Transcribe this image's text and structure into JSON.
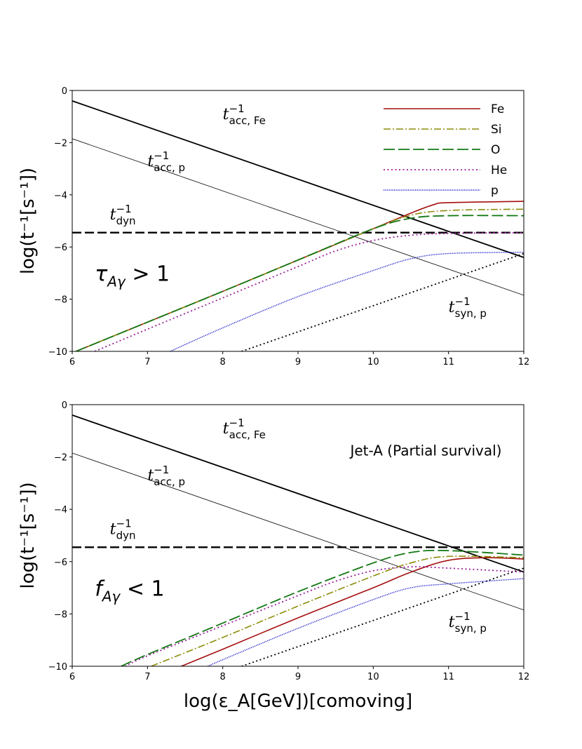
{
  "chart_data": [
    {
      "type": "line",
      "xlabel": "log(ε_A[GeV])[comoving]",
      "ylabel": "log(t⁻¹[s⁻¹])",
      "xlim": [
        6,
        12
      ],
      "ylim": [
        -10,
        0
      ],
      "xticks": [
        "6",
        "7",
        "8",
        "9",
        "10",
        "11",
        "12"
      ],
      "yticks": [
        "0",
        "−2",
        "−4",
        "−6",
        "−8",
        "−10"
      ],
      "grid": false,
      "legend_placement": "top-right",
      "regime_label": {
        "main": "τ",
        "sub": "Aγ",
        "rest": " > 1"
      },
      "annotations": [
        {
          "base": "t",
          "sup": "−1",
          "sub": "acc, Fe",
          "at": [
            8.0,
            -1.1
          ]
        },
        {
          "base": "t",
          "sup": "−1",
          "sub": "acc, p",
          "at": [
            7.0,
            -2.9
          ]
        },
        {
          "base": "t",
          "sup": "−1",
          "sub": "dyn",
          "at": [
            6.5,
            -4.95
          ]
        },
        {
          "base": "t",
          "sup": "−1",
          "sub": "syn, p",
          "at": [
            11.0,
            -8.5
          ]
        }
      ],
      "reference_lines": [
        {
          "id": "t_acc_Fe",
          "points": [
            [
              6,
              -0.4
            ],
            [
              12,
              -6.4
            ]
          ],
          "color": "#000000",
          "style": "solid-thick"
        },
        {
          "id": "t_acc_p",
          "points": [
            [
              6,
              -1.85
            ],
            [
              12,
              -7.85
            ]
          ],
          "color": "#000000",
          "style": "solid-thin"
        },
        {
          "id": "t_dyn",
          "points": [
            [
              6,
              -5.45
            ],
            [
              12,
              -5.45
            ]
          ],
          "color": "#000000",
          "style": "dashed"
        },
        {
          "id": "t_syn_p",
          "points": [
            [
              8.25,
              -10
            ],
            [
              12,
              -6.25
            ]
          ],
          "color": "#000000",
          "style": "dotted"
        }
      ],
      "series": [
        {
          "name": "Fe",
          "color": "#a50f0f",
          "style": "solid",
          "points": [
            [
              6.05,
              -10
            ],
            [
              7,
              -8.88
            ],
            [
              8,
              -7.7
            ],
            [
              9,
              -6.5
            ],
            [
              10,
              -5.3
            ],
            [
              10.5,
              -4.7
            ],
            [
              10.8,
              -4.38
            ],
            [
              11,
              -4.3
            ],
            [
              12,
              -4.25
            ]
          ]
        },
        {
          "name": "Si",
          "color": "#8c8c0a",
          "style": "dashdot",
          "points": [
            [
              6.05,
              -10
            ],
            [
              7,
              -8.88
            ],
            [
              8,
              -7.7
            ],
            [
              9,
              -6.5
            ],
            [
              10,
              -5.3
            ],
            [
              10.5,
              -4.78
            ],
            [
              11,
              -4.6
            ],
            [
              12,
              -4.55
            ]
          ]
        },
        {
          "name": "O",
          "color": "#137813",
          "style": "longdash",
          "points": [
            [
              6.05,
              -10
            ],
            [
              7,
              -8.88
            ],
            [
              8,
              -7.7
            ],
            [
              9,
              -6.5
            ],
            [
              10,
              -5.3
            ],
            [
              10.5,
              -4.9
            ],
            [
              11,
              -4.8
            ],
            [
              12,
              -4.8
            ]
          ]
        },
        {
          "name": "He",
          "color": "#9b1f9b",
          "style": "dotted",
          "points": [
            [
              6.3,
              -10
            ],
            [
              7,
              -9.15
            ],
            [
              8,
              -7.95
            ],
            [
              9,
              -6.75
            ],
            [
              9.5,
              -6.15
            ],
            [
              10,
              -5.75
            ],
            [
              10.5,
              -5.55
            ],
            [
              11,
              -5.48
            ],
            [
              12,
              -5.45
            ]
          ]
        },
        {
          "name": "p",
          "color": "#1414c8",
          "style": "finedot",
          "points": [
            [
              7.3,
              -10
            ],
            [
              8,
              -9.1
            ],
            [
              9,
              -7.9
            ],
            [
              10,
              -6.9
            ],
            [
              10.5,
              -6.45
            ],
            [
              11,
              -6.25
            ],
            [
              12,
              -6.2
            ]
          ]
        }
      ]
    },
    {
      "type": "line",
      "xlabel": "log(ε_A[GeV])[comoving]",
      "ylabel": "log(t⁻¹[s⁻¹])",
      "xlim": [
        6,
        12
      ],
      "ylim": [
        -10,
        0
      ],
      "xticks": [
        "6",
        "7",
        "8",
        "9",
        "10",
        "11",
        "12"
      ],
      "yticks": [
        "0",
        "−2",
        "−4",
        "−6",
        "−8",
        "−10"
      ],
      "grid": false,
      "title": "Jet-A (Partial survival)",
      "regime_label": {
        "main": "f",
        "sub": "Aγ",
        "rest": " < 1"
      },
      "annotations": [
        {
          "base": "t",
          "sup": "−1",
          "sub": "acc, Fe",
          "at": [
            8.0,
            -1.1
          ]
        },
        {
          "base": "t",
          "sup": "−1",
          "sub": "acc, p",
          "at": [
            7.0,
            -2.9
          ]
        },
        {
          "base": "t",
          "sup": "−1",
          "sub": "dyn",
          "at": [
            6.5,
            -4.95
          ]
        },
        {
          "base": "t",
          "sup": "−1",
          "sub": "syn, p",
          "at": [
            11.0,
            -8.5
          ]
        }
      ],
      "reference_lines": [
        {
          "id": "t_acc_Fe",
          "points": [
            [
              6,
              -0.4
            ],
            [
              12,
              -6.4
            ]
          ],
          "color": "#000000",
          "style": "solid-thick"
        },
        {
          "id": "t_acc_p",
          "points": [
            [
              6,
              -1.85
            ],
            [
              12,
              -7.85
            ]
          ],
          "color": "#000000",
          "style": "solid-thin"
        },
        {
          "id": "t_dyn",
          "points": [
            [
              6,
              -5.45
            ],
            [
              12,
              -5.45
            ]
          ],
          "color": "#000000",
          "style": "dashed"
        },
        {
          "id": "t_syn_p",
          "points": [
            [
              8.25,
              -10
            ],
            [
              12,
              -6.25
            ]
          ],
          "color": "#000000",
          "style": "dotted"
        }
      ],
      "series": [
        {
          "name": "Fe",
          "color": "#a50f0f",
          "style": "solid",
          "points": [
            [
              7.45,
              -10
            ],
            [
              8,
              -9.35
            ],
            [
              9,
              -8.15
            ],
            [
              10,
              -7.0
            ],
            [
              10.5,
              -6.4
            ],
            [
              11,
              -5.95
            ],
            [
              11.5,
              -5.85
            ],
            [
              12,
              -5.9
            ]
          ]
        },
        {
          "name": "Si",
          "color": "#8c8c0a",
          "style": "dashdot",
          "points": [
            [
              7.05,
              -10
            ],
            [
              8,
              -8.9
            ],
            [
              9,
              -7.7
            ],
            [
              10,
              -6.55
            ],
            [
              10.5,
              -6.05
            ],
            [
              11,
              -5.8
            ],
            [
              12,
              -5.85
            ]
          ]
        },
        {
          "name": "O",
          "color": "#137813",
          "style": "longdash",
          "points": [
            [
              6.65,
              -10
            ],
            [
              7,
              -9.55
            ],
            [
              8,
              -8.35
            ],
            [
              9,
              -7.15
            ],
            [
              10,
              -6.05
            ],
            [
              10.5,
              -5.65
            ],
            [
              11,
              -5.58
            ],
            [
              12,
              -5.75
            ]
          ]
        },
        {
          "name": "He",
          "color": "#9b1f9b",
          "style": "dotted",
          "points": [
            [
              6.7,
              -10
            ],
            [
              7,
              -9.6
            ],
            [
              8,
              -8.45
            ],
            [
              9,
              -7.3
            ],
            [
              9.5,
              -6.75
            ],
            [
              10,
              -6.35
            ],
            [
              10.5,
              -6.2
            ],
            [
              11,
              -6.25
            ],
            [
              12,
              -6.4
            ]
          ]
        },
        {
          "name": "p",
          "color": "#1414c8",
          "style": "finedot",
          "points": [
            [
              7.8,
              -10
            ],
            [
              8,
              -9.75
            ],
            [
              9,
              -8.55
            ],
            [
              10,
              -7.45
            ],
            [
              10.5,
              -7.0
            ],
            [
              11,
              -6.85
            ],
            [
              12,
              -6.65
            ]
          ]
        }
      ]
    }
  ]
}
